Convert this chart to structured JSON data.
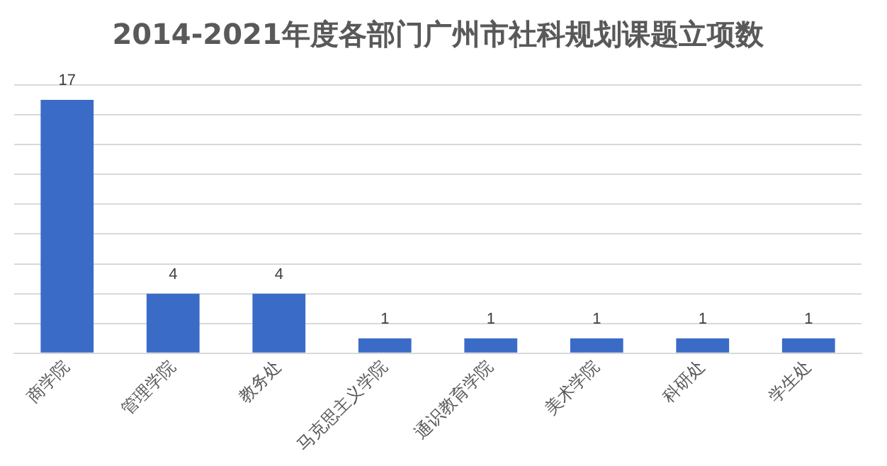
{
  "chart_data": {
    "type": "bar",
    "title": "2014-2021年度各部门广州市社科规划课题立项数",
    "categories": [
      "商学院",
      "管理学院",
      "教务处",
      "马克思主义学院",
      "通识教育学院",
      "美术学院",
      "科研处",
      "学生处"
    ],
    "values": [
      17,
      4,
      4,
      1,
      1,
      1,
      1,
      1
    ],
    "color": "#3a6bc6",
    "ylim": [
      0,
      18
    ],
    "yticks": [
      {
        "value": 0,
        "label": null
      },
      {
        "value": 2,
        "label": null
      },
      {
        "value": 4,
        "label": null
      },
      {
        "value": 6,
        "label": null
      },
      {
        "value": 8,
        "label": null
      },
      {
        "value": 10,
        "label": null
      },
      {
        "value": 12,
        "label": null
      },
      {
        "value": 14,
        "label": null
      },
      {
        "value": 16,
        "label": null
      },
      {
        "value": 18,
        "label": null
      }
    ],
    "grid": "y",
    "tick_labels": "x",
    "data_labels": true
  }
}
